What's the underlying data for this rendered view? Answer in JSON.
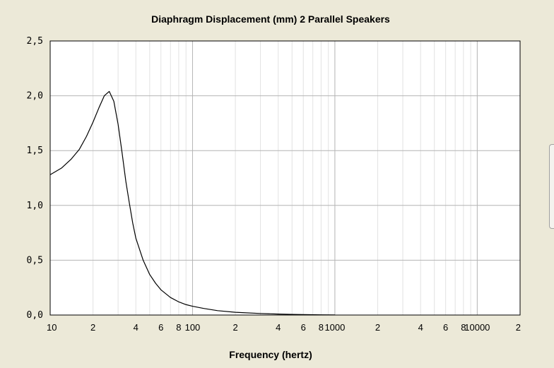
{
  "chart_data": {
    "type": "line",
    "title": "Diaphragm Displacement (mm)   2 Parallel Speakers",
    "xlabel": "Frequency (hertz)",
    "ylabel": "",
    "x_scale": "log",
    "xlim": [
      10,
      20000
    ],
    "ylim": [
      0,
      2.5
    ],
    "grid": true,
    "x_tick_labels": [
      {
        "x": 10,
        "label": "10"
      },
      {
        "x": 20,
        "label": "2"
      },
      {
        "x": 40,
        "label": "4"
      },
      {
        "x": 60,
        "label": "6"
      },
      {
        "x": 80,
        "label": "8"
      },
      {
        "x": 100,
        "label": "100"
      },
      {
        "x": 200,
        "label": "2"
      },
      {
        "x": 400,
        "label": "4"
      },
      {
        "x": 600,
        "label": "6"
      },
      {
        "x": 800,
        "label": "8"
      },
      {
        "x": 1000,
        "label": "1000"
      },
      {
        "x": 2000,
        "label": "2"
      },
      {
        "x": 4000,
        "label": "4"
      },
      {
        "x": 6000,
        "label": "6"
      },
      {
        "x": 8000,
        "label": "8"
      },
      {
        "x": 10000,
        "label": "10000"
      },
      {
        "x": 20000,
        "label": "2"
      }
    ],
    "y_tick_labels": [
      {
        "y": 0,
        "label": "0,0"
      },
      {
        "y": 0.5,
        "label": "0,5"
      },
      {
        "y": 1,
        "label": "1,0"
      },
      {
        "y": 1.5,
        "label": "1,5"
      },
      {
        "y": 2,
        "label": "2,0"
      },
      {
        "y": 2.5,
        "label": "2,5"
      }
    ],
    "series": [
      {
        "color": "#000000",
        "x": [
          10,
          12,
          14,
          16,
          18,
          20,
          22,
          24,
          26,
          28,
          30,
          32,
          34,
          36,
          38,
          40,
          45,
          50,
          55,
          60,
          70,
          80,
          90,
          100,
          120,
          150,
          200,
          300,
          400,
          500,
          600,
          800,
          1000
        ],
        "y": [
          1.28,
          1.34,
          1.42,
          1.51,
          1.63,
          1.76,
          1.89,
          2.0,
          2.04,
          1.95,
          1.74,
          1.48,
          1.22,
          1.02,
          0.84,
          0.7,
          0.5,
          0.37,
          0.29,
          0.23,
          0.16,
          0.12,
          0.095,
          0.08,
          0.06,
          0.04,
          0.025,
          0.014,
          0.009,
          0.006,
          0.004,
          0.002,
          0.001
        ]
      }
    ]
  }
}
